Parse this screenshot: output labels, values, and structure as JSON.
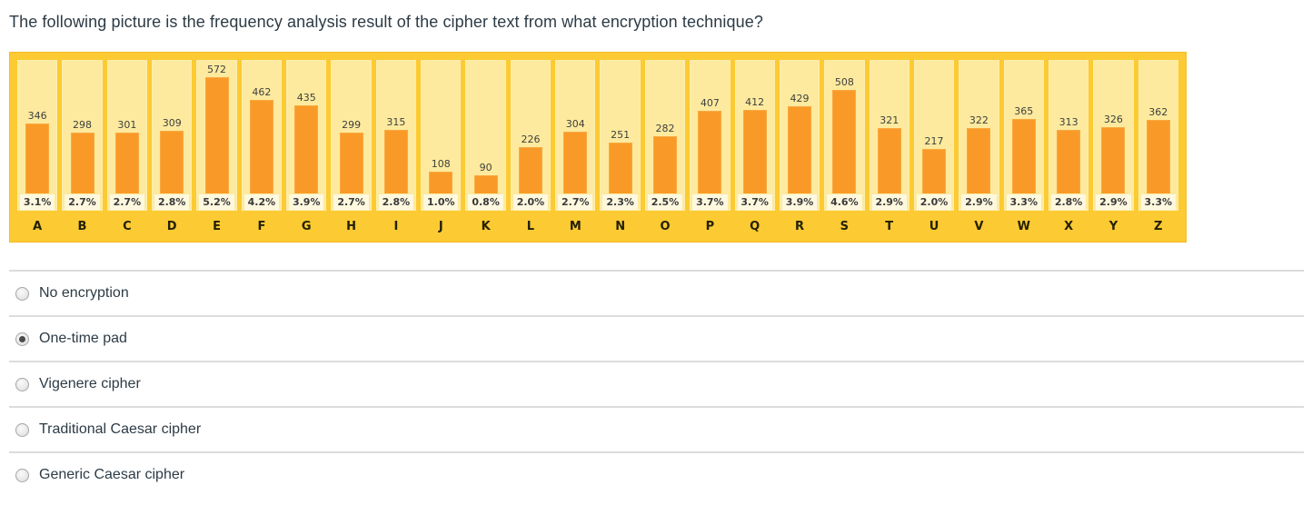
{
  "question": {
    "title": "The following picture is the frequency analysis result of the cipher text from what encryption technique?"
  },
  "chart_data": {
    "type": "bar",
    "title": "",
    "xlabel": "",
    "ylabel": "",
    "categories": [
      "A",
      "B",
      "C",
      "D",
      "E",
      "F",
      "G",
      "H",
      "I",
      "J",
      "K",
      "L",
      "M",
      "N",
      "O",
      "P",
      "Q",
      "R",
      "S",
      "T",
      "U",
      "V",
      "W",
      "X",
      "Y",
      "Z"
    ],
    "values": [
      346,
      298,
      301,
      309,
      572,
      462,
      435,
      299,
      315,
      108,
      90,
      226,
      304,
      251,
      282,
      407,
      412,
      429,
      508,
      321,
      217,
      322,
      365,
      313,
      326,
      362
    ],
    "percent_labels": [
      "3.1%",
      "2.7%",
      "2.7%",
      "2.8%",
      "5.2%",
      "4.2%",
      "3.9%",
      "2.7%",
      "2.8%",
      "1.0%",
      "0.8%",
      "2.0%",
      "2.7%",
      "2.3%",
      "2.5%",
      "3.7%",
      "3.7%",
      "3.9%",
      "4.6%",
      "2.9%",
      "2.0%",
      "2.9%",
      "3.3%",
      "2.8%",
      "2.9%",
      "3.3%"
    ],
    "ylim": [
      0,
      572
    ],
    "grid": false,
    "legend": false,
    "value_labels": true,
    "colors": {
      "frame": "#fcca32",
      "panel": "#fdea9e",
      "bar": "#f99a28",
      "percent_strip": "#fef8df",
      "letter_text": "#242000",
      "value_text": "#3f3f3f"
    }
  },
  "options": [
    {
      "label": "No encryption",
      "selected": false
    },
    {
      "label": "One-time pad",
      "selected": true
    },
    {
      "label": "Vigenere cipher",
      "selected": false
    },
    {
      "label": "Traditional Caesar cipher",
      "selected": false
    },
    {
      "label": "Generic Caesar cipher",
      "selected": false
    }
  ],
  "ui_colors": {
    "text": "#2d3b45",
    "divider": "#dcdcdc"
  }
}
